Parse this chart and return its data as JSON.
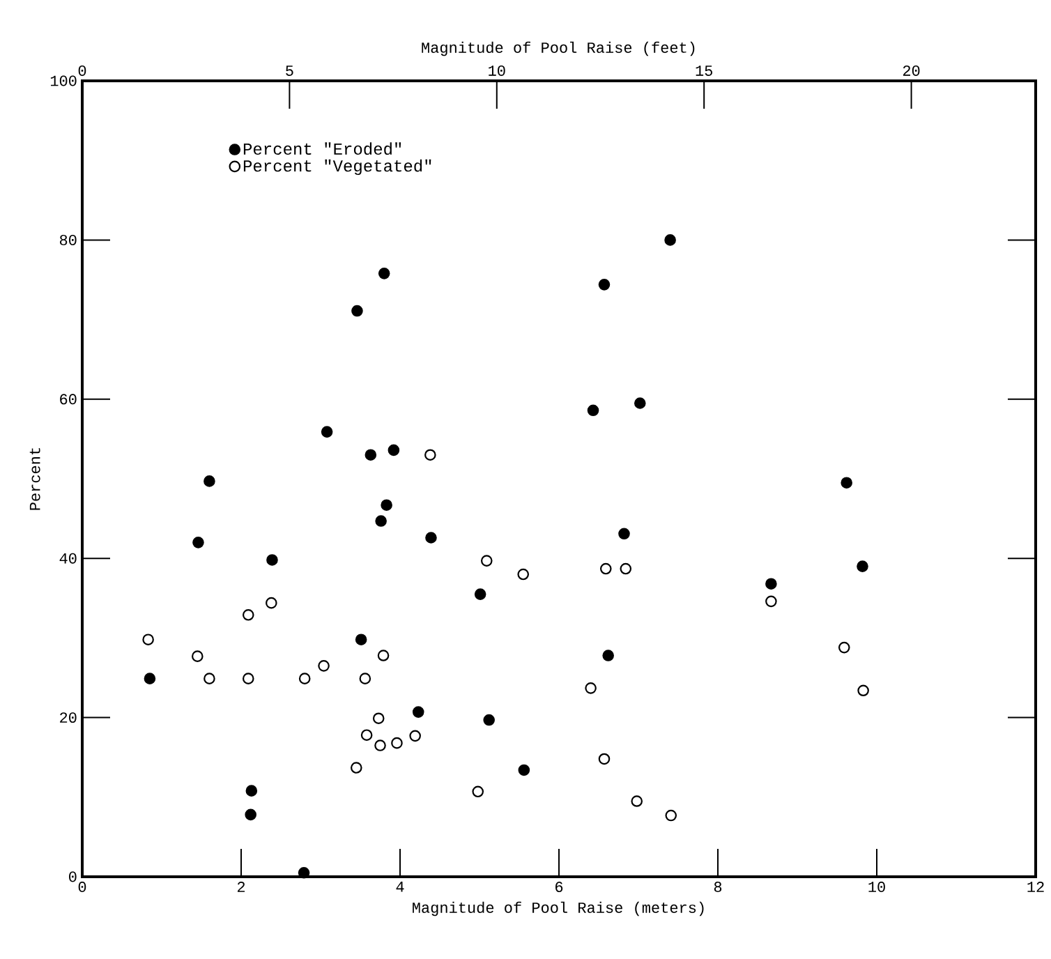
{
  "chart_data": {
    "type": "scatter",
    "xlabel": "Magnitude of Pool Raise (meters)",
    "x2label": "Magnitude of Pool Raise (feet)",
    "ylabel": "Percent",
    "xlim": [
      0,
      12
    ],
    "xticks": [
      0,
      2,
      4,
      6,
      8,
      10,
      12
    ],
    "x2lim": [
      0,
      23
    ],
    "x2ticks": [
      0,
      5,
      10,
      15,
      20
    ],
    "ylim": [
      0,
      100
    ],
    "yticks": [
      0,
      20,
      40,
      60,
      80,
      100
    ],
    "legend": "top left",
    "marker": "circle",
    "series": [
      {
        "name": "Percent \"Eroded\"",
        "color": "#000000",
        "x": [
          0.85,
          1.46,
          1.6,
          2.39,
          2.13,
          2.12,
          2.79,
          3.08,
          3.46,
          3.51,
          3.63,
          3.76,
          3.8,
          3.83,
          3.92,
          4.23,
          4.39,
          5.01,
          5.12,
          5.56,
          6.43,
          6.57,
          6.62,
          6.82,
          7.02,
          7.4,
          8.67,
          9.62,
          9.82
        ],
        "values": [
          24.9,
          42.0,
          49.7,
          39.8,
          10.8,
          7.8,
          0.5,
          55.9,
          71.1,
          29.8,
          53.0,
          44.7,
          75.8,
          46.7,
          53.6,
          20.7,
          42.6,
          35.5,
          19.7,
          13.4,
          58.6,
          74.4,
          27.8,
          43.1,
          59.5,
          80.0,
          36.8,
          49.5,
          39.0
        ]
      },
      {
        "name": "Percent \"Vegetated\"",
        "color": "#ffffff",
        "x": [
          0.83,
          1.45,
          1.6,
          2.09,
          2.09,
          2.38,
          2.8,
          3.04,
          3.45,
          3.56,
          3.58,
          3.73,
          3.75,
          3.79,
          3.96,
          4.19,
          4.38,
          4.98,
          5.09,
          5.55,
          6.4,
          6.57,
          6.59,
          6.84,
          6.98,
          7.41,
          8.67,
          9.59,
          9.83
        ],
        "values": [
          29.8,
          27.7,
          24.9,
          32.9,
          24.9,
          34.4,
          24.9,
          26.5,
          13.7,
          24.9,
          17.8,
          19.9,
          16.5,
          27.8,
          16.8,
          17.7,
          53.0,
          10.7,
          39.7,
          38.0,
          23.7,
          14.8,
          38.7,
          38.7,
          9.5,
          7.7,
          34.6,
          28.8,
          23.4
        ]
      }
    ]
  }
}
